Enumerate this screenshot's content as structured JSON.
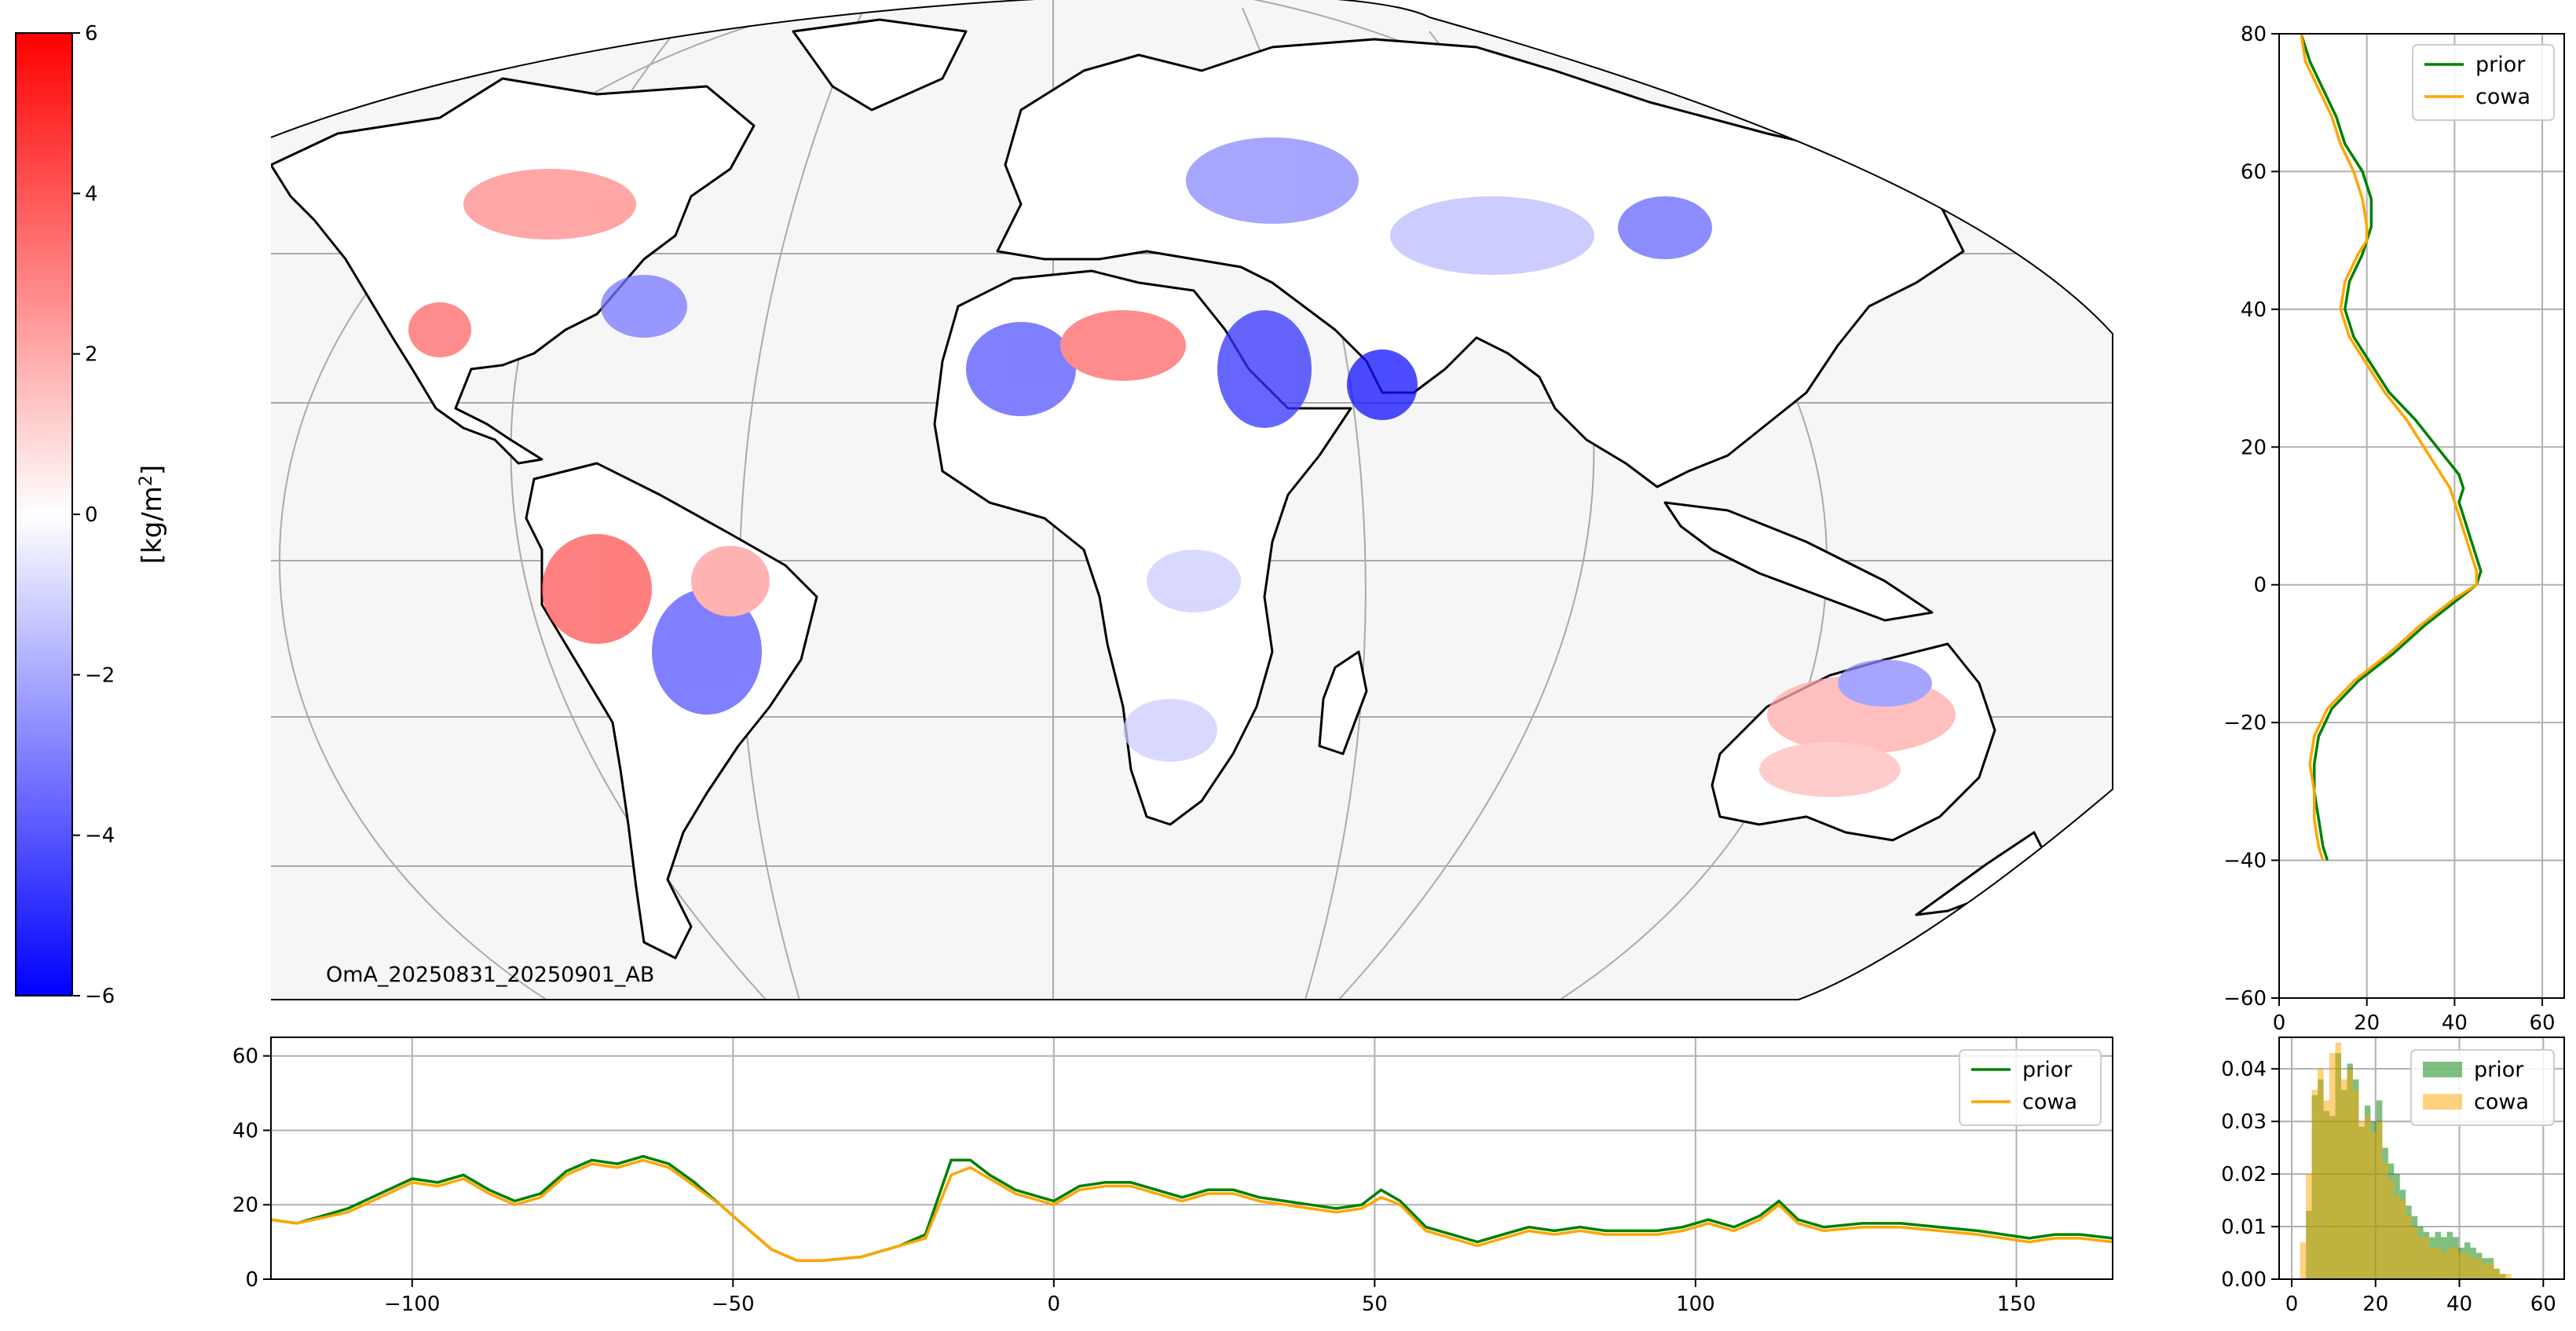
{
  "colors": {
    "prior": "#008000",
    "cowa": "#ffa500",
    "grid": "#b0b0b0",
    "cmap_low": "#0000ff",
    "cmap_mid": "#ffffff",
    "cmap_high": "#ff0000"
  },
  "colorbar": {
    "label_main": "[kg/m",
    "label_sup": "2",
    "label_close": "]",
    "ticks": [
      "6",
      "4",
      "2",
      "0",
      "−2",
      "−4",
      "−6"
    ],
    "range": [
      -6,
      6
    ]
  },
  "map": {
    "projection": "mollweide",
    "annotation": "OmA_20250831_20250901_AB",
    "lon_range": [
      -122,
      165
    ]
  },
  "chart_data": [
    {
      "id": "zonal",
      "type": "line",
      "title": "",
      "xlabel": "",
      "ylabel": "",
      "xlim": [
        -122,
        165
      ],
      "ylim": [
        0,
        65
      ],
      "xticks": [
        "−100",
        "−50",
        "0",
        "50",
        "100",
        "150"
      ],
      "yticks": [
        "0",
        "20",
        "40",
        "60"
      ],
      "grid": true,
      "legend": "top-right",
      "series": [
        {
          "name": "prior",
          "x": [
            -122,
            -118,
            -110,
            -105,
            -100,
            -96,
            -92,
            -88,
            -84,
            -80,
            -76,
            -72,
            -68,
            -64,
            -60,
            -56,
            -52,
            -48,
            -44,
            -40,
            -36,
            -30,
            -24,
            -20,
            -16,
            -13,
            -10,
            -6,
            -2,
            0,
            4,
            8,
            12,
            16,
            20,
            24,
            28,
            32,
            36,
            40,
            44,
            48,
            51,
            54,
            58,
            62,
            66,
            70,
            74,
            78,
            82,
            86,
            90,
            94,
            98,
            102,
            106,
            110,
            113,
            116,
            120,
            126,
            132,
            138,
            144,
            148,
            152,
            156,
            160,
            165
          ],
          "y": [
            16,
            15,
            19,
            23,
            27,
            26,
            28,
            24,
            21,
            23,
            29,
            32,
            31,
            33,
            31,
            26,
            20,
            14,
            8,
            5,
            5,
            6,
            9,
            12,
            32,
            32,
            28,
            24,
            22,
            21,
            25,
            26,
            26,
            24,
            22,
            24,
            24,
            22,
            21,
            20,
            19,
            20,
            24,
            21,
            14,
            12,
            10,
            12,
            14,
            13,
            14,
            13,
            13,
            13,
            14,
            16,
            14,
            17,
            21,
            16,
            14,
            15,
            15,
            14,
            13,
            12,
            11,
            12,
            12,
            11
          ]
        },
        {
          "name": "cowa",
          "x": [
            -122,
            -118,
            -110,
            -105,
            -100,
            -96,
            -92,
            -88,
            -84,
            -80,
            -76,
            -72,
            -68,
            -64,
            -60,
            -56,
            -52,
            -48,
            -44,
            -40,
            -36,
            -30,
            -24,
            -20,
            -16,
            -13,
            -10,
            -6,
            -2,
            0,
            4,
            8,
            12,
            16,
            20,
            24,
            28,
            32,
            36,
            40,
            44,
            48,
            51,
            54,
            58,
            62,
            66,
            70,
            74,
            78,
            82,
            86,
            90,
            94,
            98,
            102,
            106,
            110,
            113,
            116,
            120,
            126,
            132,
            138,
            144,
            148,
            152,
            156,
            160,
            165
          ],
          "y": [
            16,
            15,
            18,
            22,
            26,
            25,
            27,
            23,
            20,
            22,
            28,
            31,
            30,
            32,
            30,
            25,
            20,
            14,
            8,
            5,
            5,
            6,
            9,
            11,
            28,
            30,
            27,
            23,
            21,
            20,
            24,
            25,
            25,
            23,
            21,
            23,
            23,
            21,
            20,
            19,
            18,
            19,
            22,
            20,
            13,
            11,
            9,
            11,
            13,
            12,
            13,
            12,
            12,
            12,
            13,
            15,
            13,
            16,
            20,
            15,
            13,
            14,
            14,
            13,
            12,
            11,
            10,
            11,
            11,
            10
          ]
        }
      ]
    },
    {
      "id": "meridional",
      "type": "line",
      "title": "",
      "xlabel": "",
      "ylabel": "",
      "xlim": [
        0,
        65
      ],
      "ylim": [
        -60,
        80
      ],
      "xticks": [
        "0",
        "20",
        "40",
        "60"
      ],
      "yticks": [
        "−60",
        "−40",
        "−20",
        "0",
        "20",
        "40",
        "60",
        "80"
      ],
      "grid": true,
      "legend": "top-right",
      "series": [
        {
          "name": "prior",
          "lat": [
            80,
            76,
            72,
            68,
            64,
            60,
            56,
            52,
            50,
            48,
            44,
            40,
            36,
            32,
            28,
            24,
            20,
            16,
            14,
            12,
            10,
            6,
            2,
            0,
            -2,
            -6,
            -10,
            -14,
            -18,
            -22,
            -26,
            -30,
            -34,
            -38,
            -40
          ],
          "value": [
            5,
            7,
            10,
            13,
            15,
            19,
            21,
            21,
            20,
            19,
            16,
            15,
            17,
            21,
            25,
            31,
            36,
            41,
            42,
            41,
            42,
            44,
            46,
            45,
            41,
            33,
            26,
            18,
            12,
            9,
            8,
            8,
            9,
            10,
            11
          ]
        },
        {
          "name": "cowa",
          "lat": [
            80,
            76,
            72,
            68,
            64,
            60,
            56,
            52,
            50,
            48,
            44,
            40,
            36,
            32,
            28,
            24,
            20,
            16,
            14,
            12,
            10,
            6,
            2,
            0,
            -2,
            -6,
            -10,
            -14,
            -18,
            -22,
            -26,
            -30,
            -34,
            -38,
            -40
          ],
          "value": [
            5,
            6,
            9,
            12,
            14,
            17,
            19,
            20,
            20,
            18,
            15,
            14,
            16,
            20,
            24,
            29,
            33,
            37,
            39,
            40,
            41,
            43,
            45,
            45,
            40,
            32,
            25,
            17,
            11,
            8,
            7,
            8,
            8,
            9,
            10
          ]
        }
      ]
    },
    {
      "id": "histogram",
      "type": "bar",
      "title": "",
      "xlabel": "",
      "ylabel": "",
      "xlim": [
        -3,
        65
      ],
      "ylim": [
        0,
        0.046
      ],
      "xticks": [
        "0",
        "20",
        "40",
        "60"
      ],
      "yticks": [
        "0.00",
        "0.01",
        "0.02",
        "0.03",
        "0.04"
      ],
      "grid": true,
      "legend": "top-right",
      "bin_width": 1.4,
      "bin_start": 2,
      "series": [
        {
          "name": "prior",
          "values": [
            0.0,
            0.013,
            0.035,
            0.038,
            0.032,
            0.031,
            0.043,
            0.036,
            0.041,
            0.038,
            0.029,
            0.033,
            0.03,
            0.034,
            0.025,
            0.022,
            0.02,
            0.017,
            0.014,
            0.012,
            0.01,
            0.009,
            0.008,
            0.009,
            0.008,
            0.009,
            0.008,
            0.006,
            0.007,
            0.006,
            0.005,
            0.004,
            0.004,
            0.002,
            0.001,
            0.0
          ]
        },
        {
          "name": "cowa",
          "values": [
            0.007,
            0.02,
            0.036,
            0.04,
            0.034,
            0.043,
            0.045,
            0.038,
            0.04,
            0.036,
            0.03,
            0.031,
            0.028,
            0.03,
            0.022,
            0.019,
            0.016,
            0.015,
            0.012,
            0.01,
            0.008,
            0.008,
            0.006,
            0.006,
            0.005,
            0.006,
            0.006,
            0.005,
            0.005,
            0.004,
            0.004,
            0.003,
            0.003,
            0.002,
            0.001,
            0.001
          ]
        }
      ]
    }
  ]
}
